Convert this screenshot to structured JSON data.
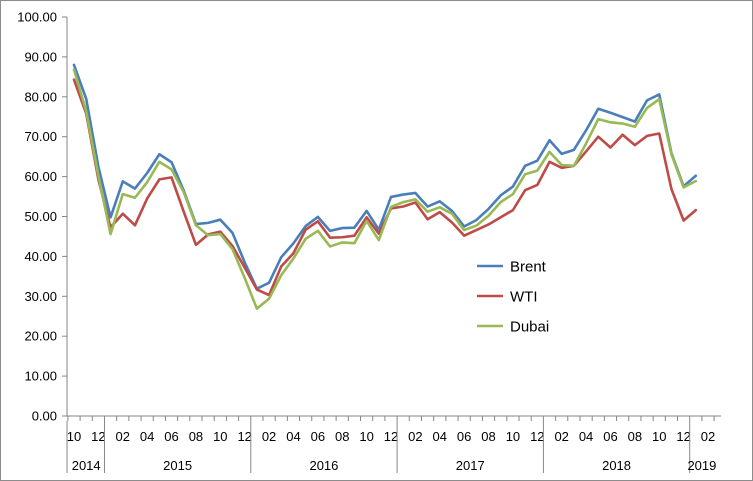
{
  "chart_data": {
    "type": "line",
    "title": "",
    "xlabel": "",
    "ylabel": "",
    "ylim": [
      0,
      100
    ],
    "yticks": [
      "0.00",
      "10.00",
      "20.00",
      "30.00",
      "40.00",
      "50.00",
      "60.00",
      "70.00",
      "80.00",
      "90.00",
      "100.00"
    ],
    "x": [
      "2014-10",
      "2014-11",
      "2014-12",
      "2015-01",
      "2015-02",
      "2015-03",
      "2015-04",
      "2015-05",
      "2015-06",
      "2015-07",
      "2015-08",
      "2015-09",
      "2015-10",
      "2015-11",
      "2015-12",
      "2016-01",
      "2016-02",
      "2016-03",
      "2016-04",
      "2016-05",
      "2016-06",
      "2016-07",
      "2016-08",
      "2016-09",
      "2016-10",
      "2016-11",
      "2016-12",
      "2017-01",
      "2017-02",
      "2017-03",
      "2017-04",
      "2017-05",
      "2017-06",
      "2017-07",
      "2017-08",
      "2017-09",
      "2017-10",
      "2017-11",
      "2017-12",
      "2018-01",
      "2018-02",
      "2018-03",
      "2018-04",
      "2018-05",
      "2018-06",
      "2018-07",
      "2018-08",
      "2018-09",
      "2018-10",
      "2018-11",
      "2018-12",
      "2019-01",
      "2019-02"
    ],
    "x_tick_labels": [
      "10",
      "12",
      "02",
      "04",
      "06",
      "08",
      "10",
      "12",
      "02",
      "04",
      "06",
      "08",
      "10",
      "12",
      "02",
      "04",
      "06",
      "08",
      "10",
      "12",
      "02",
      "04",
      "06",
      "08",
      "10",
      "12",
      "02"
    ],
    "year_labels": [
      "2014",
      "2015",
      "2016",
      "2017",
      "2018",
      "2019"
    ],
    "grid": false,
    "legend_position": "right",
    "series": [
      {
        "name": "Brent",
        "color": "#4a7ebb",
        "values": [
          88.0,
          79.5,
          62.5,
          49.8,
          58.8,
          57.0,
          60.9,
          65.6,
          63.6,
          56.5,
          48.1,
          48.4,
          49.2,
          45.9,
          38.5,
          31.9,
          33.4,
          39.8,
          43.3,
          47.6,
          49.9,
          46.4,
          47.1,
          47.2,
          51.4,
          46.7,
          54.9,
          55.5,
          55.9,
          52.5,
          53.8,
          51.4,
          47.5,
          49.1,
          51.9,
          55.3,
          57.5,
          62.7,
          64.0,
          69.1,
          65.7,
          66.7,
          71.6,
          77.0,
          76.0,
          74.9,
          73.8,
          79.1,
          80.6,
          65.9,
          57.6,
          60.2,
          null
        ]
      },
      {
        "name": "WTI",
        "color": "#be4b48",
        "values": [
          84.3,
          75.8,
          59.3,
          47.3,
          50.7,
          47.8,
          54.5,
          59.3,
          59.8,
          51.2,
          42.9,
          45.5,
          46.2,
          42.6,
          37.2,
          31.7,
          30.3,
          37.5,
          40.8,
          46.7,
          48.8,
          44.7,
          44.8,
          45.2,
          49.8,
          45.7,
          52.0,
          52.5,
          53.5,
          49.3,
          51.1,
          48.5,
          45.2,
          46.6,
          48.0,
          49.8,
          51.6,
          56.6,
          57.9,
          63.7,
          62.2,
          62.7,
          66.3,
          70.0,
          67.3,
          70.5,
          67.9,
          70.2,
          70.8,
          56.9,
          49.0,
          51.6,
          null
        ]
      },
      {
        "name": "Dubai",
        "color": "#98b954",
        "values": [
          86.8,
          76.4,
          60.2,
          45.6,
          55.6,
          54.7,
          58.6,
          63.7,
          61.8,
          56.1,
          47.8,
          45.3,
          45.6,
          41.8,
          34.6,
          26.9,
          29.4,
          35.3,
          39.5,
          44.4,
          46.4,
          42.5,
          43.5,
          43.3,
          48.9,
          44.1,
          52.4,
          53.6,
          54.3,
          51.2,
          52.3,
          50.7,
          46.6,
          47.7,
          50.2,
          53.6,
          55.6,
          60.6,
          61.5,
          66.2,
          62.9,
          62.7,
          68.3,
          74.4,
          73.6,
          73.3,
          72.5,
          77.2,
          79.4,
          65.6,
          57.3,
          58.9,
          null
        ]
      }
    ]
  }
}
